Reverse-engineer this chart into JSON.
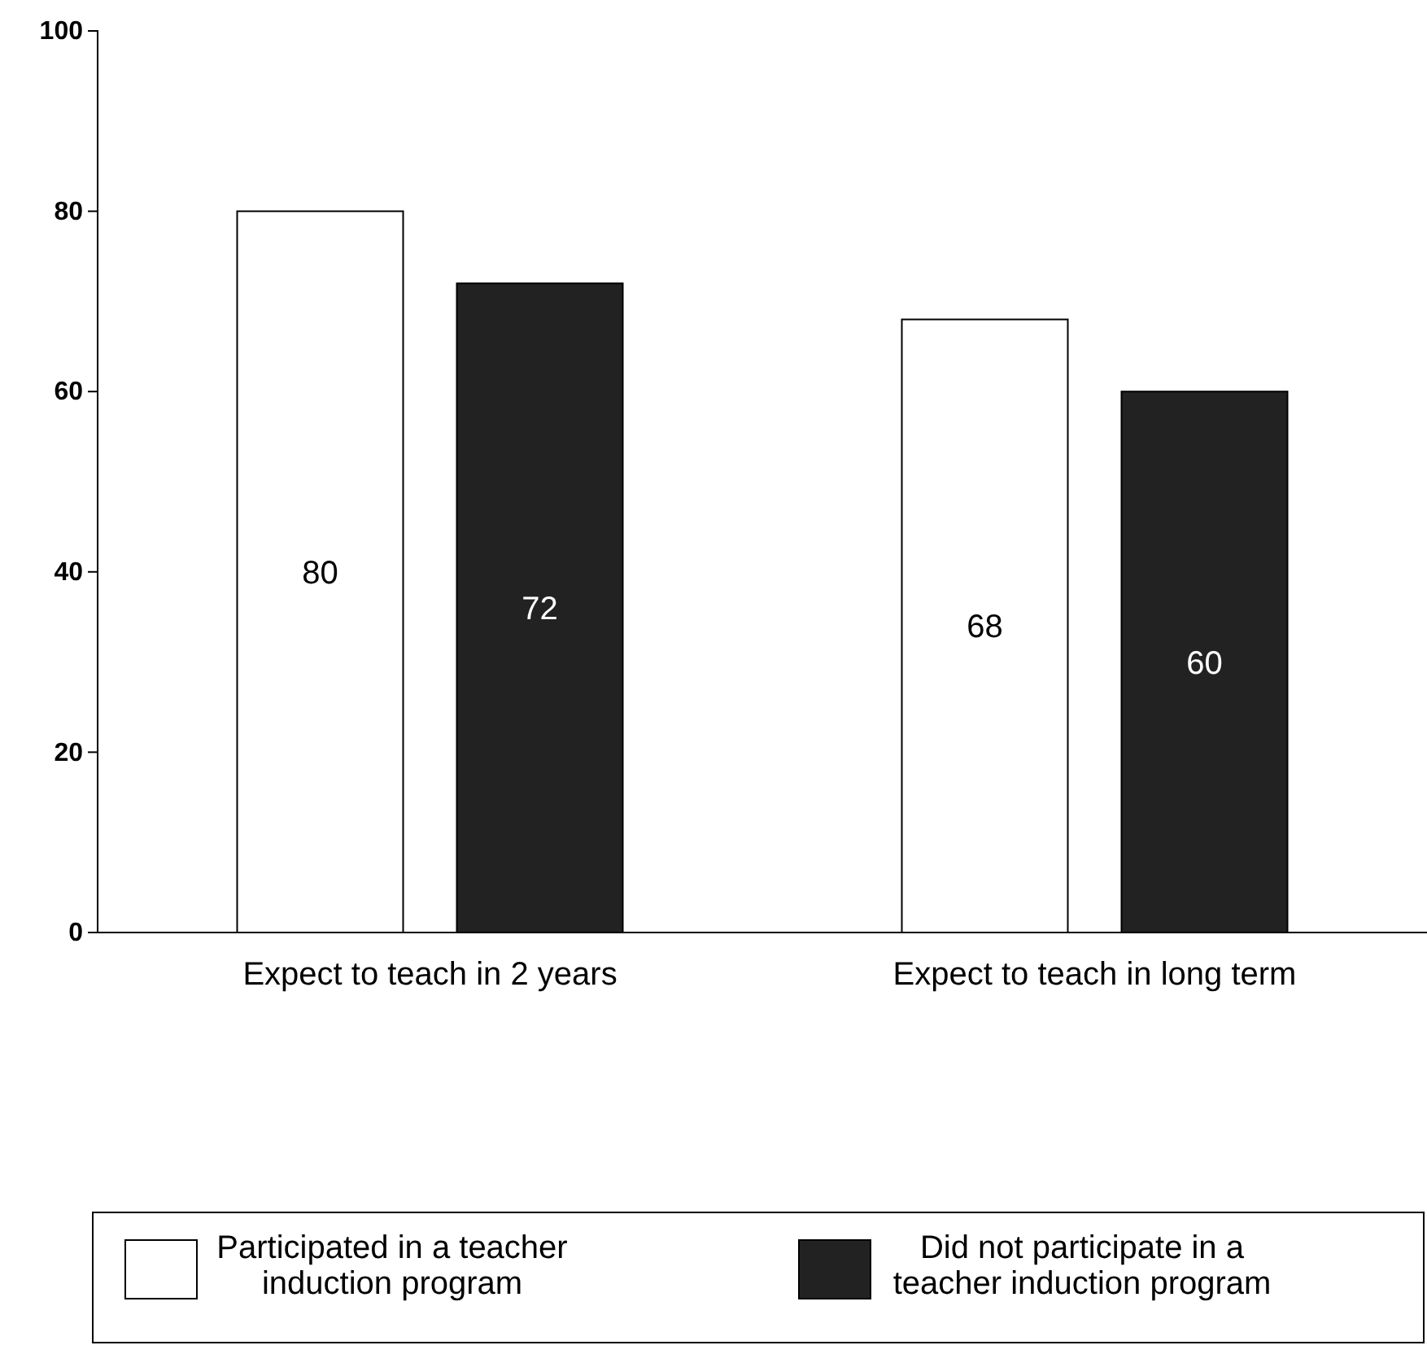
{
  "chart_data": {
    "type": "bar",
    "categories": [
      "Expect to teach in 2 years",
      "Expect to teach in long term"
    ],
    "series": [
      {
        "name": "Participated in a teacher induction program",
        "color": "#ffffff",
        "values": [
          80,
          68
        ]
      },
      {
        "name": "Did not participate in a teacher induction program",
        "color": "#222222",
        "values": [
          72,
          60
        ]
      }
    ],
    "ylim": [
      0,
      100
    ],
    "yticks": [
      0,
      20,
      40,
      60,
      80,
      100
    ],
    "data_labels": true,
    "legend": "bottom",
    "grid": false
  }
}
